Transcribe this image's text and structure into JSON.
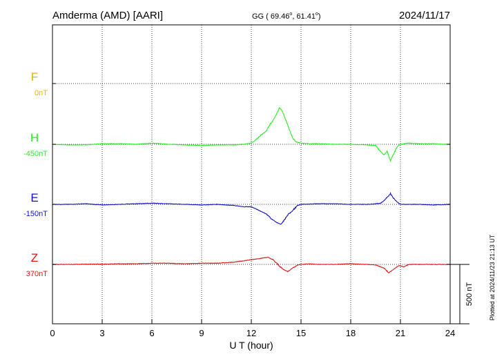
{
  "header": {
    "station": "Amderma (AMD)  [AARI]",
    "coords": "GG ( 69.46",
    "coords_deg1": "o",
    "coords_mid": ",  61.41",
    "coords_deg2": "o",
    "coords_end": ")",
    "date": "2024/11/17"
  },
  "side_note": "Plotted at 2024/11/23 21:13 UT",
  "colors": {
    "F": "#f0b000",
    "H": "#22ee22",
    "E": "#1010cc",
    "Z": "#dd1010",
    "axis": "#000000"
  },
  "chart_data": {
    "type": "line",
    "xlabel": "U T (hour)",
    "xlim": [
      0,
      24
    ],
    "xticks": [
      0,
      3,
      6,
      9,
      12,
      15,
      18,
      21,
      24
    ],
    "grid": true,
    "scale_bar": {
      "label": "500 nT",
      "value_nT": 500
    },
    "series": [
      {
        "name": "F",
        "baseline": "0nT",
        "values": []
      },
      {
        "name": "H",
        "baseline": "-450nT",
        "x": [
          0,
          1,
          2,
          3,
          4,
          5,
          6,
          7,
          8,
          9,
          10,
          11,
          11.5,
          12,
          12.3,
          12.6,
          12.9,
          13.1,
          13.3,
          13.5,
          13.7,
          13.9,
          14.1,
          14.3,
          14.5,
          14.7,
          15,
          15.5,
          16,
          17,
          18,
          19,
          19.5,
          19.8,
          20,
          20.2,
          20.4,
          20.6,
          20.8,
          21,
          21.5,
          22,
          22.5,
          23,
          23.5,
          24
        ],
        "values": [
          0,
          -5,
          -5,
          5,
          5,
          0,
          10,
          0,
          -5,
          -10,
          -5,
          -5,
          0,
          10,
          40,
          80,
          110,
          160,
          200,
          250,
          310,
          270,
          200,
          120,
          50,
          20,
          10,
          5,
          5,
          0,
          0,
          -5,
          -10,
          -60,
          -90,
          -60,
          -140,
          -80,
          -20,
          0,
          10,
          5,
          5,
          5,
          0,
          0
        ]
      },
      {
        "name": "E",
        "baseline": "-150nT",
        "x": [
          0,
          1,
          2,
          3,
          4,
          5,
          6,
          7,
          8,
          9,
          10,
          11,
          11.5,
          12,
          12.3,
          12.6,
          12.9,
          13.2,
          13.5,
          13.8,
          14,
          14.2,
          14.5,
          14.8,
          15,
          16,
          17,
          18,
          19,
          19.5,
          19.8,
          20,
          20.2,
          20.4,
          20.6,
          20.8,
          21,
          22,
          23,
          24
        ],
        "values": [
          0,
          0,
          5,
          -5,
          0,
          5,
          10,
          5,
          0,
          -5,
          0,
          -10,
          -20,
          -20,
          -40,
          -60,
          -80,
          -120,
          -150,
          -170,
          -130,
          -90,
          -50,
          -10,
          0,
          5,
          5,
          0,
          0,
          5,
          10,
          30,
          60,
          90,
          50,
          20,
          0,
          0,
          -5,
          0
        ]
      },
      {
        "name": "Z",
        "baseline": "370nT",
        "x": [
          0,
          1,
          2,
          3,
          4,
          5,
          6,
          7,
          8,
          9,
          10,
          11,
          11.5,
          12,
          12.5,
          13,
          13.3,
          13.6,
          13.9,
          14.2,
          14.5,
          14.8,
          15,
          15.5,
          16,
          17,
          18,
          19,
          19.5,
          19.8,
          20,
          20.3,
          20.6,
          20.9,
          21.2,
          21.5,
          22,
          23,
          24
        ],
        "values": [
          0,
          0,
          2,
          2,
          5,
          5,
          10,
          10,
          5,
          10,
          10,
          20,
          30,
          40,
          50,
          60,
          40,
          0,
          -40,
          -60,
          -30,
          -5,
          0,
          5,
          0,
          0,
          5,
          0,
          -5,
          -20,
          -30,
          -70,
          -40,
          -10,
          -20,
          0,
          0,
          0,
          0
        ]
      }
    ]
  }
}
